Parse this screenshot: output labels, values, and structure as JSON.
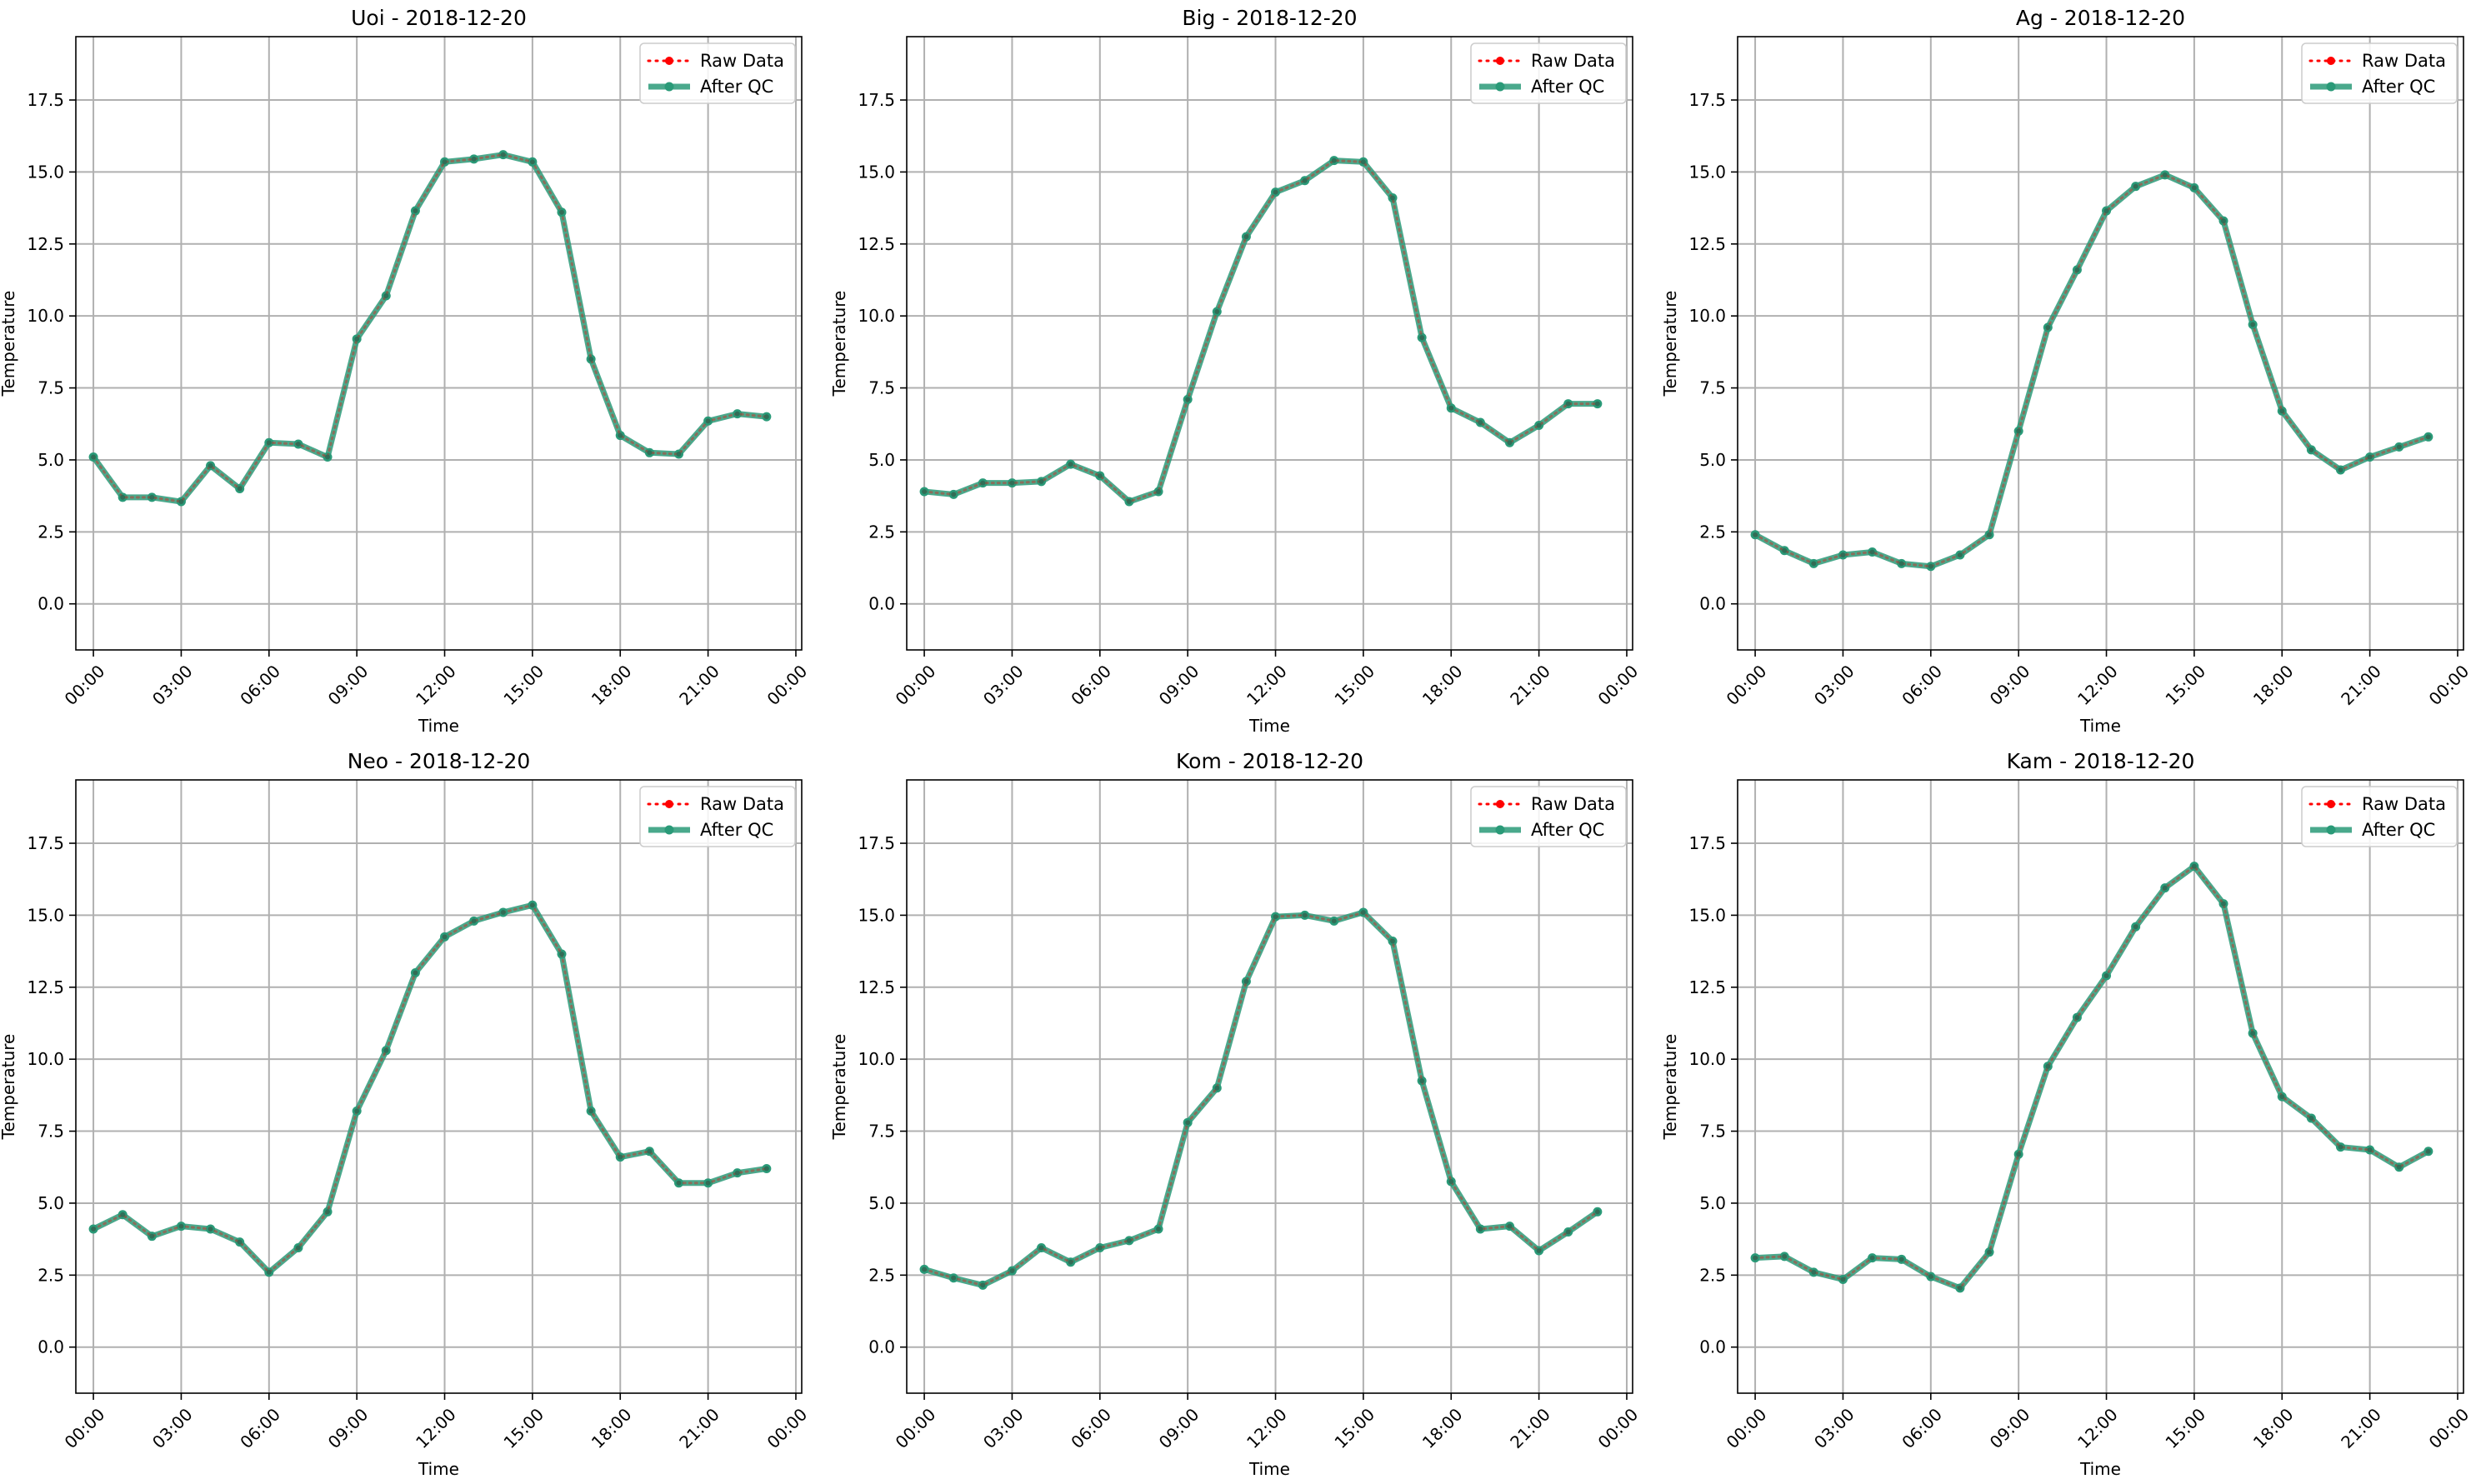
{
  "chart_data": [
    {
      "type": "line",
      "title": "Uoi - 2018-12-20",
      "xlabel": "Time",
      "ylabel": "Temperature",
      "x_hours": [
        0,
        1,
        2,
        3,
        4,
        5,
        6,
        7,
        8,
        9,
        10,
        11,
        12,
        13,
        14,
        15,
        16,
        17,
        18,
        19,
        20,
        21,
        22,
        23
      ],
      "xticks": [
        "00:00",
        "03:00",
        "06:00",
        "09:00",
        "12:00",
        "15:00",
        "18:00",
        "21:00",
        "00:00"
      ],
      "yticks": [
        "0.0",
        "2.5",
        "5.0",
        "7.5",
        "10.0",
        "12.5",
        "15.0",
        "17.5"
      ],
      "ylim": [
        -1.6,
        19.7
      ],
      "xlim": [
        -0.6,
        24.2
      ],
      "grid": true,
      "legend_position": "top-right",
      "series": [
        {
          "name": "Raw Data",
          "color": "#ff0000",
          "style": "dotted",
          "values": [
            5.1,
            3.7,
            3.7,
            3.55,
            4.8,
            4.0,
            5.6,
            5.55,
            5.1,
            9.2,
            10.7,
            13.65,
            15.35,
            15.45,
            15.6,
            15.35,
            13.6,
            8.5,
            5.85,
            5.25,
            5.2,
            6.35,
            6.6,
            6.5
          ]
        },
        {
          "name": "After QC",
          "color": "#2a9a78",
          "style": "solid",
          "values": [
            5.1,
            3.7,
            3.7,
            3.55,
            4.8,
            4.0,
            5.6,
            5.55,
            5.1,
            9.2,
            10.7,
            13.65,
            15.35,
            15.45,
            15.6,
            15.35,
            13.6,
            8.5,
            5.85,
            5.25,
            5.2,
            6.35,
            6.6,
            6.5
          ]
        }
      ]
    },
    {
      "type": "line",
      "title": "Big - 2018-12-20",
      "xlabel": "Time",
      "ylabel": "Temperature",
      "x_hours": [
        0,
        1,
        2,
        3,
        4,
        5,
        6,
        7,
        8,
        9,
        10,
        11,
        12,
        13,
        14,
        15,
        16,
        17,
        18,
        19,
        20,
        21,
        22,
        23
      ],
      "xticks": [
        "00:00",
        "03:00",
        "06:00",
        "09:00",
        "12:00",
        "15:00",
        "18:00",
        "21:00",
        "00:00"
      ],
      "yticks": [
        "0.0",
        "2.5",
        "5.0",
        "7.5",
        "10.0",
        "12.5",
        "15.0",
        "17.5"
      ],
      "ylim": [
        -1.6,
        19.7
      ],
      "xlim": [
        -0.6,
        24.2
      ],
      "grid": true,
      "legend_position": "top-right",
      "series": [
        {
          "name": "Raw Data",
          "color": "#ff0000",
          "style": "dotted",
          "values": [
            3.9,
            3.8,
            4.2,
            4.2,
            4.25,
            4.85,
            4.45,
            3.55,
            3.9,
            7.1,
            10.15,
            12.75,
            14.3,
            14.7,
            15.4,
            15.35,
            14.1,
            9.25,
            6.8,
            6.3,
            5.6,
            6.2,
            6.95,
            6.95
          ]
        },
        {
          "name": "After QC",
          "color": "#2a9a78",
          "style": "solid",
          "values": [
            3.9,
            3.8,
            4.2,
            4.2,
            4.25,
            4.85,
            4.45,
            3.55,
            3.9,
            7.1,
            10.15,
            12.75,
            14.3,
            14.7,
            15.4,
            15.35,
            14.1,
            9.25,
            6.8,
            6.3,
            5.6,
            6.2,
            6.95,
            6.95
          ]
        }
      ]
    },
    {
      "type": "line",
      "title": "Ag - 2018-12-20",
      "xlabel": "Time",
      "ylabel": "Temperature",
      "x_hours": [
        0,
        1,
        2,
        3,
        4,
        5,
        6,
        7,
        8,
        9,
        10,
        11,
        12,
        13,
        14,
        15,
        16,
        17,
        18,
        19,
        20,
        21,
        22,
        23
      ],
      "xticks": [
        "00:00",
        "03:00",
        "06:00",
        "09:00",
        "12:00",
        "15:00",
        "18:00",
        "21:00",
        "00:00"
      ],
      "yticks": [
        "0.0",
        "2.5",
        "5.0",
        "7.5",
        "10.0",
        "12.5",
        "15.0",
        "17.5"
      ],
      "ylim": [
        -1.6,
        19.7
      ],
      "xlim": [
        -0.6,
        24.2
      ],
      "grid": true,
      "legend_position": "top-right",
      "series": [
        {
          "name": "Raw Data",
          "color": "#ff0000",
          "style": "dotted",
          "values": [
            2.4,
            1.85,
            1.4,
            1.7,
            1.8,
            1.4,
            1.3,
            1.7,
            2.4,
            6.0,
            9.6,
            11.6,
            13.65,
            14.5,
            14.9,
            14.45,
            13.3,
            9.7,
            6.7,
            5.35,
            4.65,
            5.1,
            5.45,
            5.8
          ]
        },
        {
          "name": "After QC",
          "color": "#2a9a78",
          "style": "solid",
          "values": [
            2.4,
            1.85,
            1.4,
            1.7,
            1.8,
            1.4,
            1.3,
            1.7,
            2.4,
            6.0,
            9.6,
            11.6,
            13.65,
            14.5,
            14.9,
            14.45,
            13.3,
            9.7,
            6.7,
            5.35,
            4.65,
            5.1,
            5.45,
            5.8
          ]
        }
      ]
    },
    {
      "type": "line",
      "title": "Neo - 2018-12-20",
      "xlabel": "Time",
      "ylabel": "Temperature",
      "x_hours": [
        0,
        1,
        2,
        3,
        4,
        5,
        6,
        7,
        8,
        9,
        10,
        11,
        12,
        13,
        14,
        15,
        16,
        17,
        18,
        19,
        20,
        21,
        22,
        23
      ],
      "xticks": [
        "00:00",
        "03:00",
        "06:00",
        "09:00",
        "12:00",
        "15:00",
        "18:00",
        "21:00",
        "00:00"
      ],
      "yticks": [
        "0.0",
        "2.5",
        "5.0",
        "7.5",
        "10.0",
        "12.5",
        "15.0",
        "17.5"
      ],
      "ylim": [
        -1.6,
        19.7
      ],
      "xlim": [
        -0.6,
        24.2
      ],
      "grid": true,
      "legend_position": "top-right",
      "series": [
        {
          "name": "Raw Data",
          "color": "#ff0000",
          "style": "dotted",
          "values": [
            4.1,
            4.6,
            3.85,
            4.2,
            4.1,
            3.65,
            2.6,
            3.45,
            4.7,
            8.2,
            10.3,
            13.0,
            14.25,
            14.8,
            15.1,
            15.35,
            13.65,
            8.2,
            6.6,
            6.8,
            5.7,
            5.7,
            6.05,
            6.2
          ]
        },
        {
          "name": "After QC",
          "color": "#2a9a78",
          "style": "solid",
          "values": [
            4.1,
            4.6,
            3.85,
            4.2,
            4.1,
            3.65,
            2.6,
            3.45,
            4.7,
            8.2,
            10.3,
            13.0,
            14.25,
            14.8,
            15.1,
            15.35,
            13.65,
            8.2,
            6.6,
            6.8,
            5.7,
            5.7,
            6.05,
            6.2
          ]
        }
      ]
    },
    {
      "type": "line",
      "title": "Kom - 2018-12-20",
      "xlabel": "Time",
      "ylabel": "Temperature",
      "x_hours": [
        0,
        1,
        2,
        3,
        4,
        5,
        6,
        7,
        8,
        9,
        10,
        11,
        12,
        13,
        14,
        15,
        16,
        17,
        18,
        19,
        20,
        21,
        22,
        23
      ],
      "xticks": [
        "00:00",
        "03:00",
        "06:00",
        "09:00",
        "12:00",
        "15:00",
        "18:00",
        "21:00",
        "00:00"
      ],
      "yticks": [
        "0.0",
        "2.5",
        "5.0",
        "7.5",
        "10.0",
        "12.5",
        "15.0",
        "17.5"
      ],
      "ylim": [
        -1.6,
        19.7
      ],
      "xlim": [
        -0.6,
        24.2
      ],
      "grid": true,
      "legend_position": "top-right",
      "series": [
        {
          "name": "Raw Data",
          "color": "#ff0000",
          "style": "dotted",
          "values": [
            2.7,
            2.4,
            2.15,
            2.65,
            3.45,
            2.95,
            3.45,
            3.7,
            4.1,
            7.8,
            9.0,
            12.7,
            14.95,
            15.0,
            14.8,
            15.1,
            14.1,
            9.25,
            5.75,
            4.1,
            4.2,
            3.35,
            4.0,
            4.7
          ]
        },
        {
          "name": "After QC",
          "color": "#2a9a78",
          "style": "solid",
          "values": [
            2.7,
            2.4,
            2.15,
            2.65,
            3.45,
            2.95,
            3.45,
            3.7,
            4.1,
            7.8,
            9.0,
            12.7,
            14.95,
            15.0,
            14.8,
            15.1,
            14.1,
            9.25,
            5.75,
            4.1,
            4.2,
            3.35,
            4.0,
            4.7
          ]
        }
      ]
    },
    {
      "type": "line",
      "title": "Kam - 2018-12-20",
      "xlabel": "Time",
      "ylabel": "Temperature",
      "x_hours": [
        0,
        1,
        2,
        3,
        4,
        5,
        6,
        7,
        8,
        9,
        10,
        11,
        12,
        13,
        14,
        15,
        16,
        17,
        18,
        19,
        20,
        21,
        22,
        23
      ],
      "xticks": [
        "00:00",
        "03:00",
        "06:00",
        "09:00",
        "12:00",
        "15:00",
        "18:00",
        "21:00",
        "00:00"
      ],
      "yticks": [
        "0.0",
        "2.5",
        "5.0",
        "7.5",
        "10.0",
        "12.5",
        "15.0",
        "17.5"
      ],
      "ylim": [
        -1.6,
        19.7
      ],
      "xlim": [
        -0.6,
        24.2
      ],
      "grid": true,
      "legend_position": "top-right",
      "series": [
        {
          "name": "Raw Data",
          "color": "#ff0000",
          "style": "dotted",
          "values": [
            3.1,
            3.15,
            2.6,
            2.35,
            3.1,
            3.05,
            2.45,
            2.05,
            3.3,
            6.7,
            9.75,
            11.45,
            12.9,
            14.6,
            15.95,
            16.7,
            15.4,
            10.9,
            8.7,
            7.95,
            6.95,
            6.85,
            6.25,
            6.8
          ]
        },
        {
          "name": "After QC",
          "color": "#2a9a78",
          "style": "solid",
          "values": [
            3.1,
            3.15,
            2.6,
            2.35,
            3.1,
            3.05,
            2.45,
            2.05,
            3.3,
            6.7,
            9.75,
            11.45,
            12.9,
            14.6,
            15.95,
            16.7,
            15.4,
            10.9,
            8.7,
            7.95,
            6.95,
            6.85,
            6.25,
            6.8
          ]
        }
      ]
    }
  ]
}
